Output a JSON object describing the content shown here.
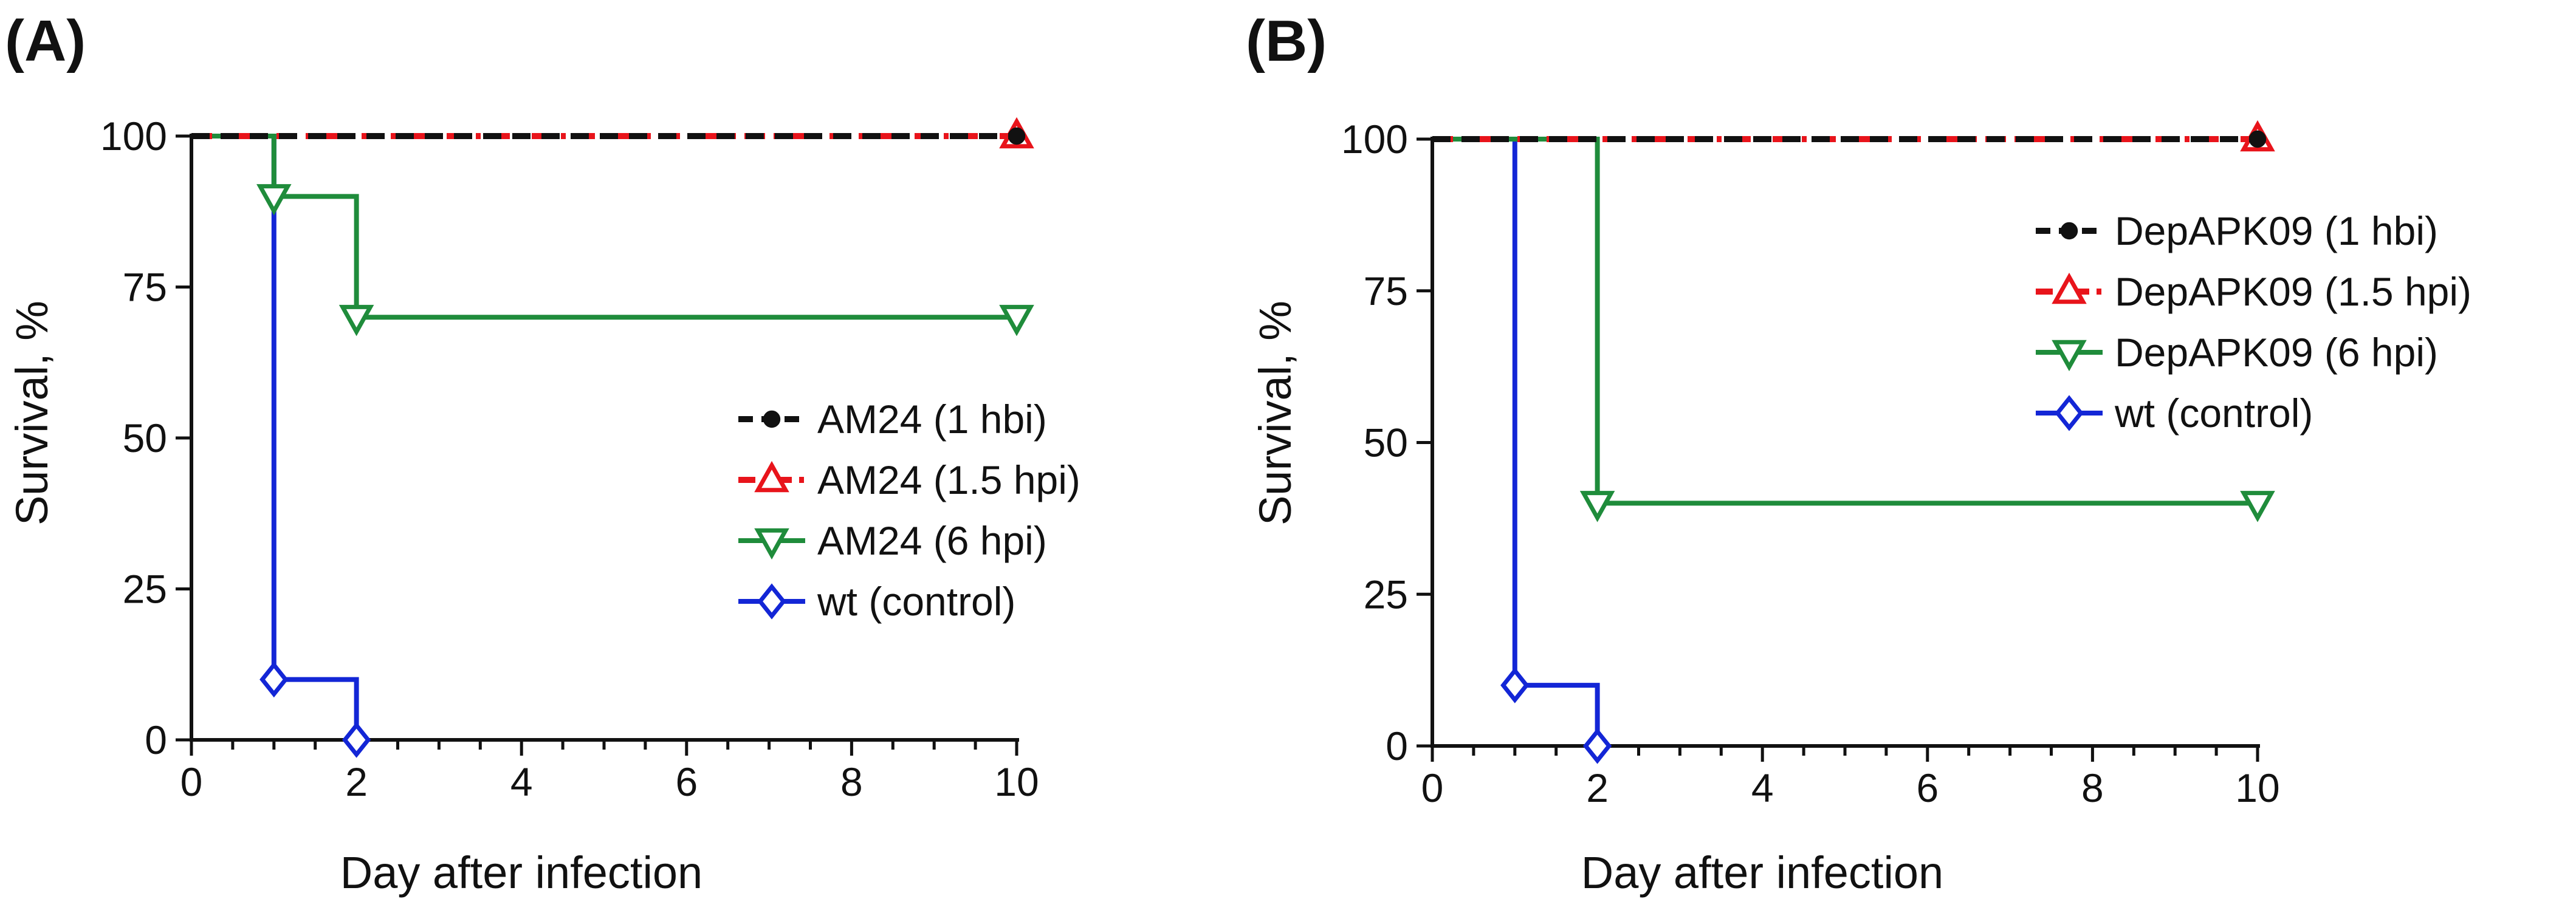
{
  "chart_data": [
    {
      "type": "line",
      "step": true,
      "panel_label": "(A)",
      "xlabel": "Day after infection",
      "ylabel": "Survival, %",
      "xlim": [
        0,
        10
      ],
      "ylim": [
        0,
        100
      ],
      "xticks": [
        0,
        2,
        4,
        6,
        8,
        10
      ],
      "yticks": [
        0,
        25,
        50,
        75,
        100
      ],
      "xtick_labels": [
        "0",
        "2",
        "4",
        "6",
        "8",
        "10"
      ],
      "ytick_labels": [
        "0",
        "25",
        "50",
        "75",
        "100"
      ],
      "legend_position": "center-right",
      "series": [
        {
          "name": "AM24 (1 hbi)",
          "color": "#111111",
          "dash": "dashed",
          "marker": "circle",
          "x": [
            0,
            10
          ],
          "y": [
            100,
            100
          ],
          "marker_x": [
            10
          ],
          "marker_y": [
            100
          ]
        },
        {
          "name": "AM24 (1.5 hpi)",
          "color": "#e8141b",
          "dash": "dashdot",
          "marker": "triangle-up",
          "x": [
            0,
            10
          ],
          "y": [
            100,
            100
          ],
          "marker_x": [
            10
          ],
          "marker_y": [
            100
          ]
        },
        {
          "name": "AM24 (6 hpi)",
          "color": "#1f8c3b",
          "dash": "solid",
          "marker": "triangle-down",
          "x": [
            0,
            1,
            2,
            10
          ],
          "y": [
            100,
            90,
            70,
            70
          ],
          "marker_x": [
            1,
            2,
            10
          ],
          "marker_y": [
            90,
            70,
            70
          ]
        },
        {
          "name": "wt (control)",
          "color": "#1326d6",
          "dash": "solid",
          "marker": "diamond",
          "x": [
            0,
            1,
            2
          ],
          "y": [
            100,
            10,
            0
          ],
          "marker_x": [
            1,
            2
          ],
          "marker_y": [
            10,
            0
          ]
        }
      ]
    },
    {
      "type": "line",
      "step": true,
      "panel_label": "(B)",
      "xlabel": "Day after infection",
      "ylabel": "Survival, %",
      "xlim": [
        0,
        10
      ],
      "ylim": [
        0,
        100
      ],
      "xticks": [
        0,
        2,
        4,
        6,
        8,
        10
      ],
      "yticks": [
        0,
        25,
        50,
        75,
        100
      ],
      "xtick_labels": [
        "0",
        "2",
        "4",
        "6",
        "8",
        "10"
      ],
      "ytick_labels": [
        "0",
        "25",
        "50",
        "75",
        "100"
      ],
      "legend_position": "upper-right",
      "series": [
        {
          "name": "DepAPK09 (1 hbi)",
          "color": "#111111",
          "dash": "dashed",
          "marker": "circle",
          "x": [
            0,
            10
          ],
          "y": [
            100,
            100
          ],
          "marker_x": [
            10
          ],
          "marker_y": [
            100
          ]
        },
        {
          "name": "DepAPK09 (1.5 hpi)",
          "color": "#e8141b",
          "dash": "dashdot",
          "marker": "triangle-up",
          "x": [
            0,
            10
          ],
          "y": [
            100,
            100
          ],
          "marker_x": [
            10
          ],
          "marker_y": [
            100
          ]
        },
        {
          "name": "DepAPK09 (6 hpi)",
          "color": "#1f8c3b",
          "dash": "solid",
          "marker": "triangle-down",
          "x": [
            0,
            2,
            10
          ],
          "y": [
            100,
            40,
            40
          ],
          "marker_x": [
            2,
            10
          ],
          "marker_y": [
            40,
            40
          ]
        },
        {
          "name": "wt (control)",
          "color": "#1326d6",
          "dash": "solid",
          "marker": "diamond",
          "x": [
            0,
            1,
            2
          ],
          "y": [
            100,
            10,
            0
          ],
          "marker_x": [
            1,
            2
          ],
          "marker_y": [
            10,
            0
          ]
        }
      ]
    }
  ]
}
